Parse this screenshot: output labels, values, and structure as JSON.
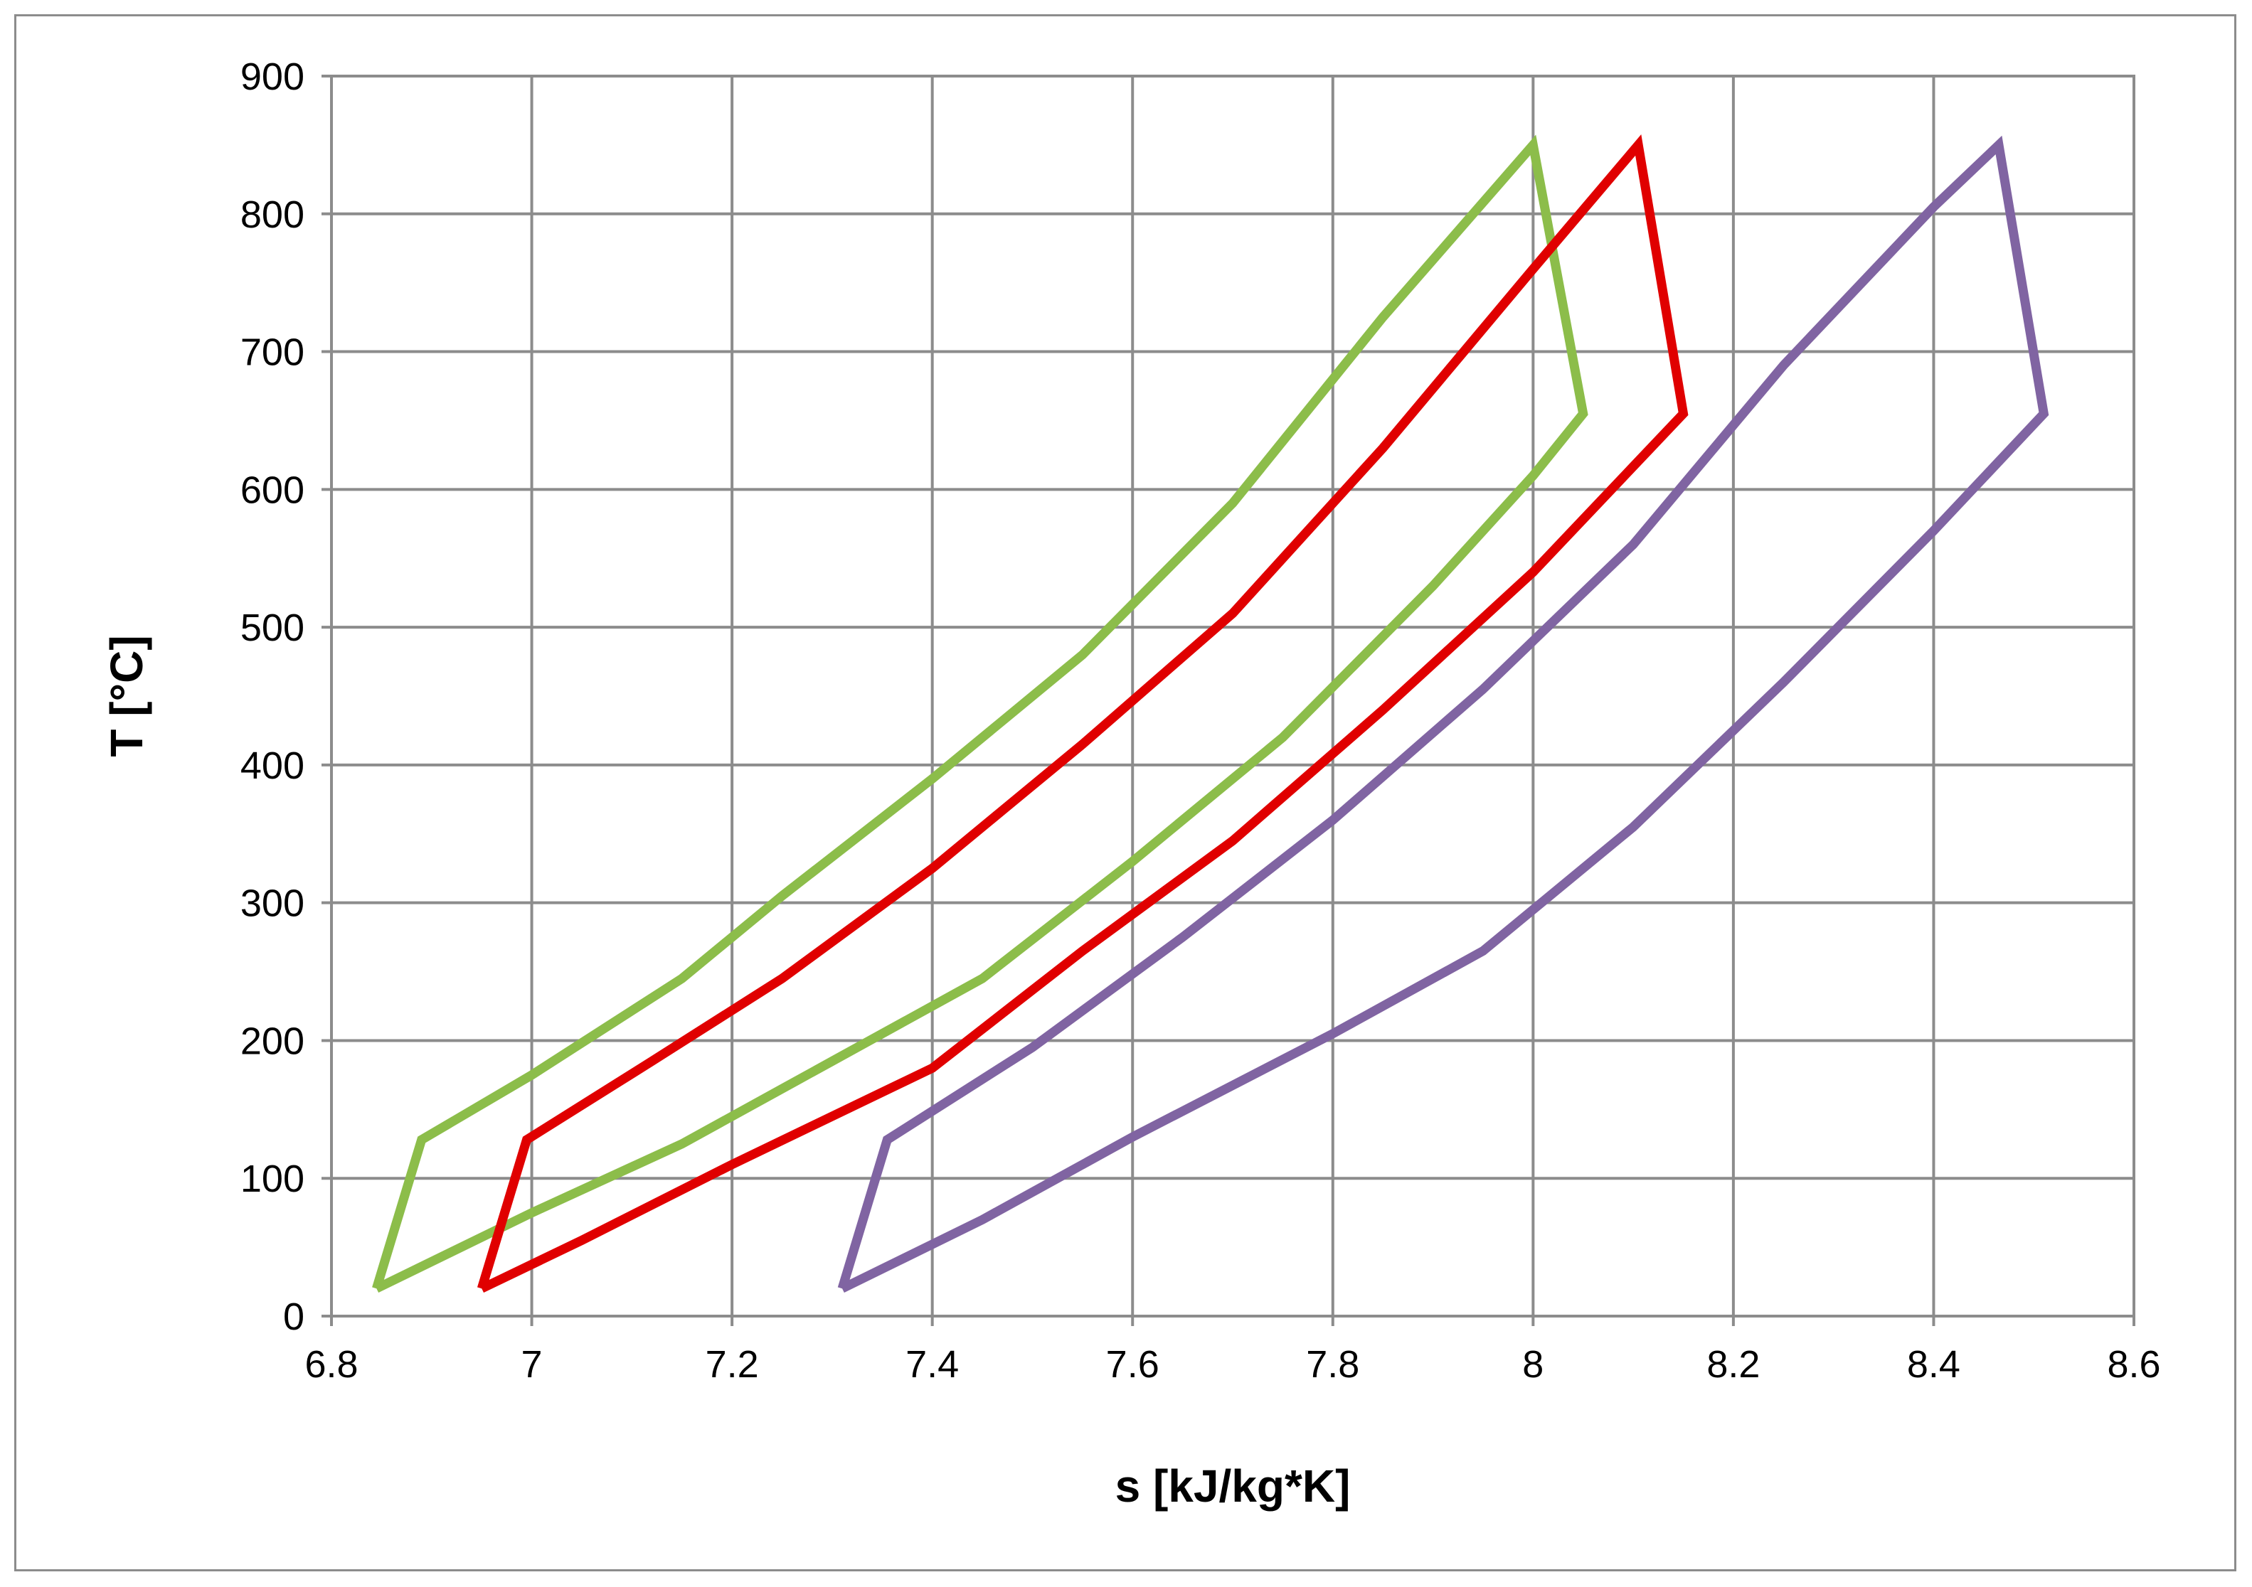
{
  "chart_data": {
    "type": "line",
    "title": "",
    "xlabel": "s [kJ/kg*K]",
    "ylabel": "T [°C]",
    "xlim": [
      6.8,
      8.6
    ],
    "ylim": [
      0,
      900
    ],
    "x_ticks": [
      "6.8",
      "7",
      "7.2",
      "7.4",
      "7.6",
      "7.8",
      "8",
      "8.2",
      "8.4",
      "8.6"
    ],
    "y_ticks": [
      "0",
      "100",
      "200",
      "300",
      "400",
      "500",
      "600",
      "700",
      "800",
      "900"
    ],
    "grid": true,
    "legend": "none",
    "series": [
      {
        "color": "#8cbd4a",
        "points": [
          [
            6.845,
            20
          ],
          [
            6.89,
            128
          ],
          [
            7.0,
            175
          ],
          [
            7.15,
            245
          ],
          [
            7.25,
            305
          ],
          [
            7.4,
            390
          ],
          [
            7.55,
            480
          ],
          [
            7.7,
            590
          ],
          [
            7.85,
            725
          ],
          [
            8.0,
            850
          ],
          [
            8.05,
            655
          ],
          [
            8.0,
            610
          ],
          [
            7.9,
            530
          ],
          [
            7.75,
            420
          ],
          [
            7.6,
            330
          ],
          [
            7.45,
            245
          ],
          [
            7.3,
            185
          ],
          [
            7.15,
            125
          ],
          [
            7.0,
            75
          ],
          [
            6.845,
            20
          ]
        ]
      },
      {
        "color": "#e00000",
        "points": [
          [
            6.95,
            20
          ],
          [
            6.995,
            128
          ],
          [
            7.12,
            185
          ],
          [
            7.25,
            245
          ],
          [
            7.4,
            325
          ],
          [
            7.55,
            415
          ],
          [
            7.7,
            510
          ],
          [
            7.85,
            630
          ],
          [
            8.0,
            760
          ],
          [
            8.105,
            850
          ],
          [
            8.15,
            655
          ],
          [
            8.0,
            540
          ],
          [
            7.85,
            440
          ],
          [
            7.7,
            345
          ],
          [
            7.55,
            265
          ],
          [
            7.4,
            180
          ],
          [
            7.2,
            110
          ],
          [
            7.05,
            55
          ],
          [
            6.95,
            20
          ]
        ]
      },
      {
        "color": "#8064a2",
        "points": [
          [
            7.31,
            20
          ],
          [
            7.355,
            128
          ],
          [
            7.5,
            195
          ],
          [
            7.65,
            275
          ],
          [
            7.8,
            360
          ],
          [
            7.95,
            455
          ],
          [
            8.1,
            560
          ],
          [
            8.25,
            690
          ],
          [
            8.4,
            805
          ],
          [
            8.465,
            850
          ],
          [
            8.51,
            655
          ],
          [
            8.4,
            570
          ],
          [
            8.25,
            460
          ],
          [
            8.1,
            355
          ],
          [
            7.95,
            265
          ],
          [
            7.8,
            205
          ],
          [
            7.6,
            130
          ],
          [
            7.45,
            70
          ],
          [
            7.31,
            20
          ]
        ]
      }
    ]
  }
}
